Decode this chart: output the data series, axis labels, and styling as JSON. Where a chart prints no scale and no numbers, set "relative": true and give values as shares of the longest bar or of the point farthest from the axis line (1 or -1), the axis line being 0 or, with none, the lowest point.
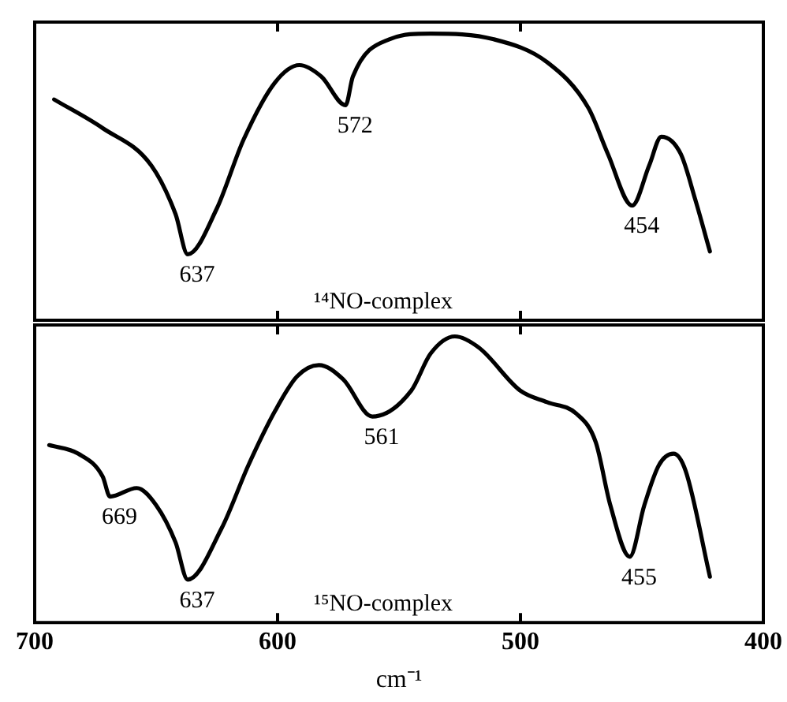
{
  "chart_data": [
    {
      "type": "line",
      "relative": true,
      "xlim": [
        700,
        400
      ],
      "xticks": [
        700,
        600,
        500,
        400
      ],
      "tick_labels": false,
      "grid": false,
      "legend": false,
      "marker": "none",
      "line_style": "solid",
      "series": [
        {
          "color": "#000000",
          "x": [
            692,
            672,
            652,
            642,
            637,
            625,
            614,
            601,
            591,
            582,
            572,
            569,
            554,
            537,
            511,
            489,
            472,
            464,
            454,
            447,
            442,
            434,
            428,
            422
          ],
          "values": [
            0.77,
            0.67,
            0.54,
            0.37,
            0.23,
            0.39,
            0.63,
            0.83,
            0.89,
            0.85,
            0.75,
            0.85,
            0.98,
            1,
            0.98,
            0.9,
            0.74,
            0.58,
            0.4,
            0.54,
            0.64,
            0.58,
            0.42,
            0.24
          ]
        }
      ],
      "annotations": [
        {
          "text": "637",
          "x": 637,
          "y": 0.23
        },
        {
          "text": "572",
          "x": 572,
          "y": 0.75
        },
        {
          "text": "454",
          "x": 454,
          "y": 0.4
        },
        "¹⁴NO-complex"
      ]
    },
    {
      "type": "line",
      "relative": true,
      "xlim": [
        700,
        400
      ],
      "xticks": [
        700,
        600,
        500,
        400
      ],
      "tick_labels": "x",
      "xlabel": "cm⁻¹",
      "grid": false,
      "legend": false,
      "marker": "none",
      "line_style": "solid",
      "series": [
        {
          "color": "#000000",
          "x": [
            694,
            682,
            672,
            669,
            658,
            650,
            642,
            637,
            623,
            612,
            601,
            592,
            583,
            573,
            561,
            545,
            537,
            527,
            517,
            500,
            489,
            477,
            469,
            463,
            455,
            449,
            443,
            437,
            432,
            422
          ],
          "values": [
            0.62,
            0.59,
            0.51,
            0.44,
            0.47,
            0.41,
            0.28,
            0.15,
            0.33,
            0.55,
            0.74,
            0.86,
            0.9,
            0.85,
            0.72,
            0.81,
            0.94,
            1,
            0.96,
            0.81,
            0.77,
            0.73,
            0.63,
            0.41,
            0.23,
            0.41,
            0.55,
            0.59,
            0.53,
            0.16
          ]
        }
      ],
      "annotations": [
        {
          "text": "669",
          "x": 669,
          "y": 0.44
        },
        {
          "text": "637",
          "x": 637,
          "y": 0.15
        },
        {
          "text": "561",
          "x": 561,
          "y": 0.72
        },
        {
          "text": "455",
          "x": 455,
          "y": 0.23
        },
        "¹⁵NO-complex"
      ]
    }
  ]
}
